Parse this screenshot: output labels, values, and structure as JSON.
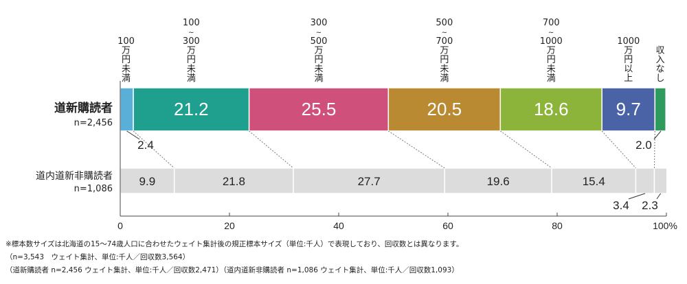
{
  "chart_data": {
    "type": "bar",
    "orientation": "horizontal-stacked-100",
    "categories_header": [
      [
        "100",
        "万",
        "円",
        "未",
        "満"
      ],
      [
        "100",
        "~",
        "300",
        "万",
        "円",
        "未",
        "満"
      ],
      [
        "300",
        "~",
        "500",
        "万",
        "円",
        "未",
        "満"
      ],
      [
        "500",
        "~",
        "700",
        "万",
        "円",
        "未",
        "満"
      ],
      [
        "700",
        "~",
        "1000",
        "万",
        "円",
        "未",
        "満"
      ],
      [
        "1000",
        "万",
        "円",
        "以",
        "上"
      ],
      [
        "収",
        "入",
        "な",
        "し"
      ]
    ],
    "colors": [
      "#5aafd9",
      "#1fa08e",
      "#d0507c",
      "#b98a32",
      "#8db43a",
      "#4a63a6",
      "#2e9a5e"
    ],
    "series": [
      {
        "name": "道新購読者",
        "sub": "n=2,456",
        "values": [
          2.4,
          21.2,
          25.5,
          20.5,
          18.6,
          9.7,
          2.0
        ]
      },
      {
        "name": "道内道新非購読者",
        "sub": "n=1,086",
        "values": [
          9.9,
          21.8,
          27.7,
          19.6,
          15.4,
          3.4,
          2.3
        ],
        "color": "#dcdcdc"
      }
    ],
    "xlim": [
      0,
      100
    ],
    "xticks": [
      "0",
      "20",
      "40",
      "60",
      "80",
      "100%"
    ],
    "xtick_values": [
      0,
      20,
      40,
      60,
      80,
      100
    ]
  },
  "notes": [
    "※標本数サイズは北海道の15～74歳人口に合わせたウェイト集計後の規正標本サイズ（単位:千人）で表現しており、回収数とは異なります。",
    "（n=3,543　ウェイト集計、単位:千人／回収数3,564）",
    "（道新購読者 n=2,456 ウェイト集計、単位:千人／回収数2,471）（道内道新非購読者 n=1,086 ウェイト集計、単位:千人／回収数1,093）"
  ]
}
